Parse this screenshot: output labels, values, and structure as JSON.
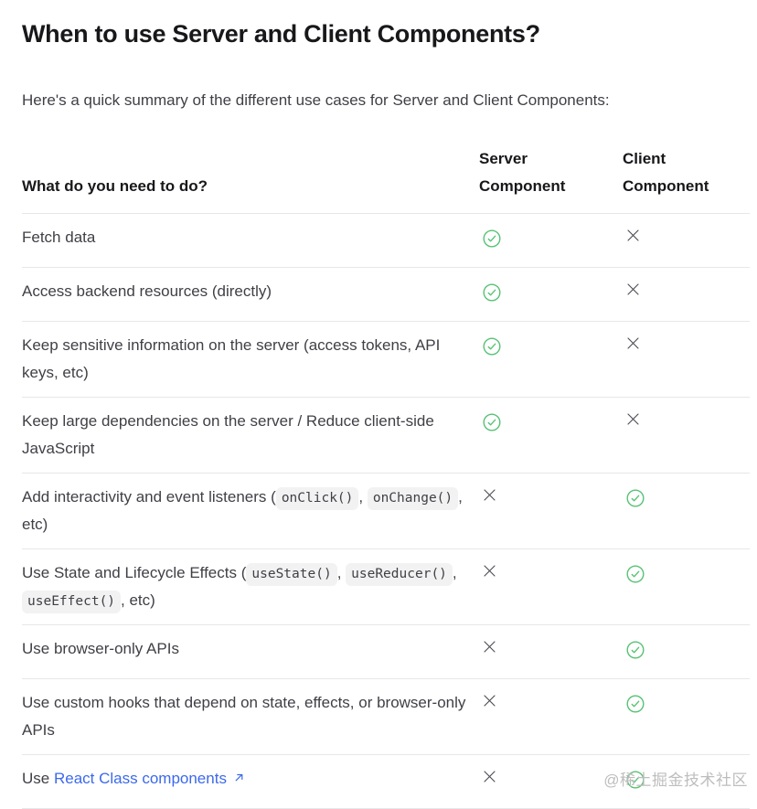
{
  "page": {
    "heading": "When to use Server and Client Components?",
    "intro": "Here's a quick summary of the different use cases for Server and Client Components:"
  },
  "table": {
    "headers": {
      "task": "What do you need to do?",
      "server": "Server Component",
      "client": "Client Component"
    },
    "rows": [
      {
        "task": [
          {
            "type": "text",
            "text": "Fetch data"
          }
        ],
        "server": "check",
        "client": "cross"
      },
      {
        "task": [
          {
            "type": "text",
            "text": "Access backend resources (directly)"
          }
        ],
        "server": "check",
        "client": "cross"
      },
      {
        "task": [
          {
            "type": "text",
            "text": "Keep sensitive information on the server (access tokens, API keys, etc)"
          }
        ],
        "server": "check",
        "client": "cross"
      },
      {
        "task": [
          {
            "type": "text",
            "text": "Keep large dependencies on the server / Reduce client-side JavaScript"
          }
        ],
        "server": "check",
        "client": "cross"
      },
      {
        "task": [
          {
            "type": "text",
            "text": "Add interactivity and event listeners ("
          },
          {
            "type": "code",
            "text": "onClick()"
          },
          {
            "type": "text",
            "text": ", "
          },
          {
            "type": "code",
            "text": "onChange()"
          },
          {
            "type": "text",
            "text": ", etc)"
          }
        ],
        "server": "cross",
        "client": "check"
      },
      {
        "task": [
          {
            "type": "text",
            "text": "Use State and Lifecycle Effects ("
          },
          {
            "type": "code",
            "text": "useState()"
          },
          {
            "type": "text",
            "text": ", "
          },
          {
            "type": "code",
            "text": "useReducer()"
          },
          {
            "type": "text",
            "text": ", "
          },
          {
            "type": "code",
            "text": "useEffect()"
          },
          {
            "type": "text",
            "text": ", etc)"
          }
        ],
        "server": "cross",
        "client": "check"
      },
      {
        "task": [
          {
            "type": "text",
            "text": "Use browser-only APIs"
          }
        ],
        "server": "cross",
        "client": "check"
      },
      {
        "task": [
          {
            "type": "text",
            "text": "Use custom hooks that depend on state, effects, or browser-only APIs"
          }
        ],
        "server": "cross",
        "client": "check"
      },
      {
        "task": [
          {
            "type": "text",
            "text": "Use "
          },
          {
            "type": "link",
            "text": "React Class components",
            "external": true
          }
        ],
        "server": "cross",
        "client": "check"
      }
    ]
  },
  "icons": {
    "check": "check-circle-icon",
    "cross": "x-icon",
    "external": "external-link-arrow-icon"
  },
  "colors": {
    "check_green": "#57c274",
    "cross_gray": "#4b4b52",
    "link_blue": "#3c69eb",
    "divider": "#e7e7e9",
    "code_background": "#f2f2f3",
    "heading_text": "#18181b",
    "body_text": "#3f3f46",
    "watermark_gray": "#bdbdbd"
  },
  "watermark": "@稀土掘金技术社区"
}
